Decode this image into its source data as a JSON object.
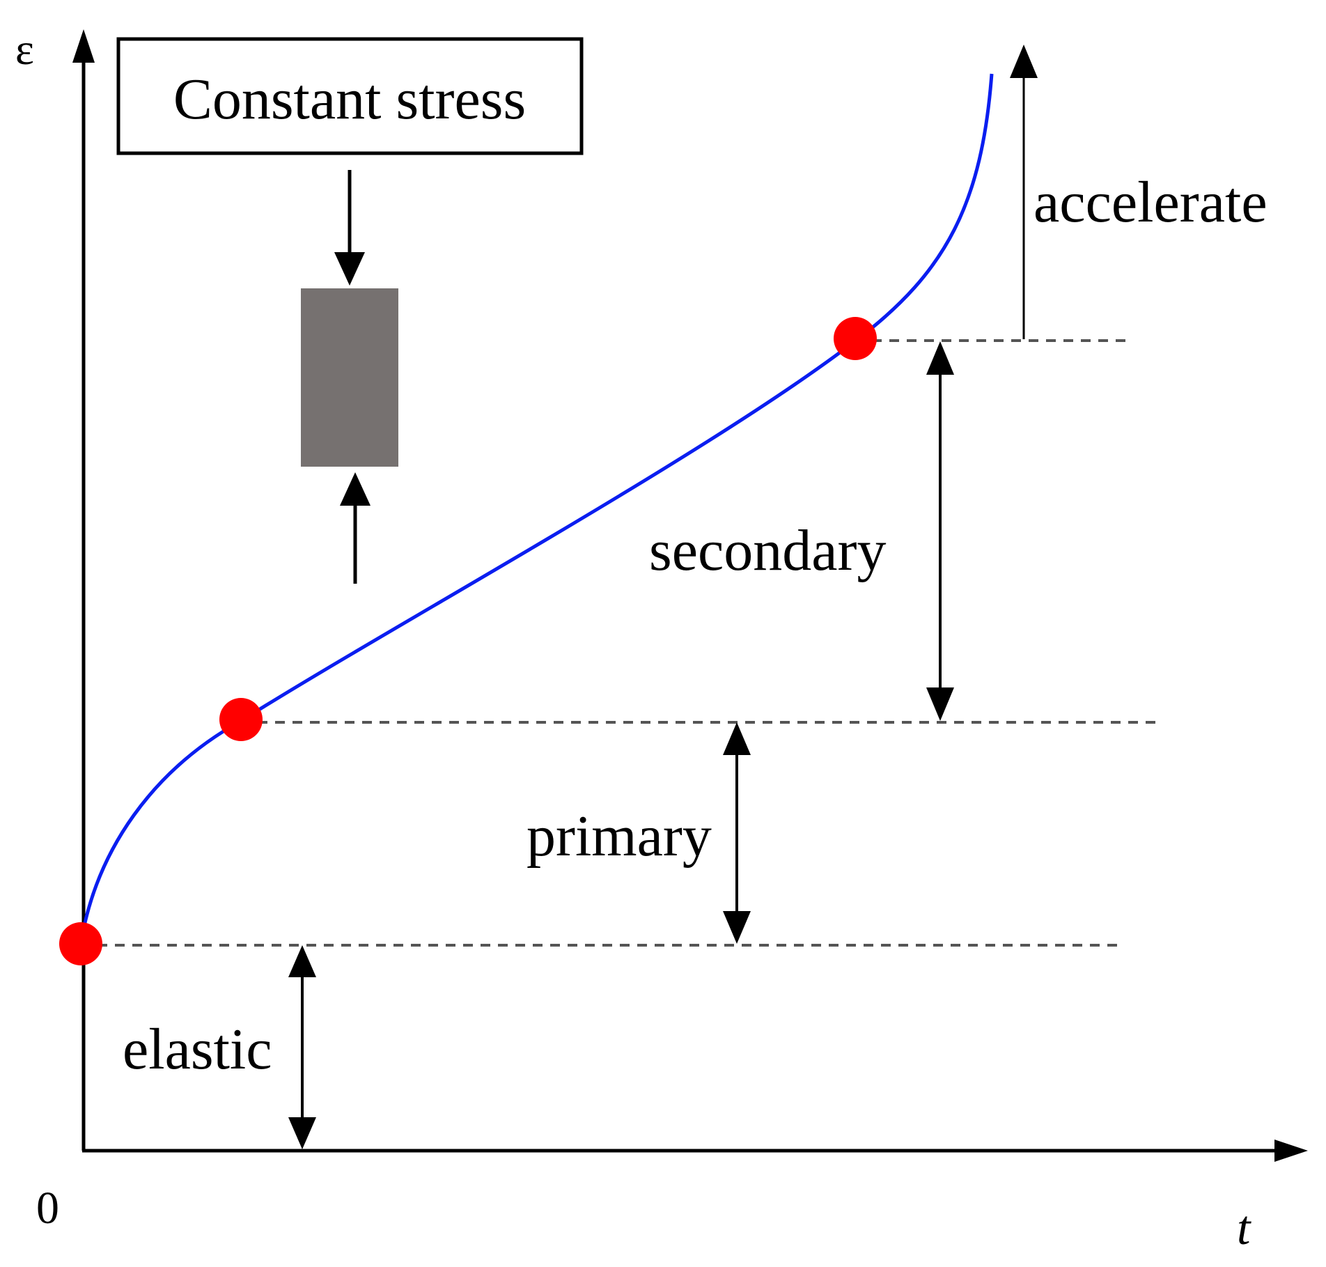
{
  "axes": {
    "y_symbol": "ε",
    "x_symbol": "t",
    "origin": "0"
  },
  "stress_box": {
    "text": "Constant stress"
  },
  "phases": {
    "elastic": "elastic",
    "primary": "primary",
    "secondary": "secondary",
    "accelerate": "accelerate"
  },
  "colors": {
    "curve": "#0a1ef0",
    "points": "#ff0000",
    "specimen": "#767170",
    "axes": "#000000",
    "dashed": "#555555"
  }
}
